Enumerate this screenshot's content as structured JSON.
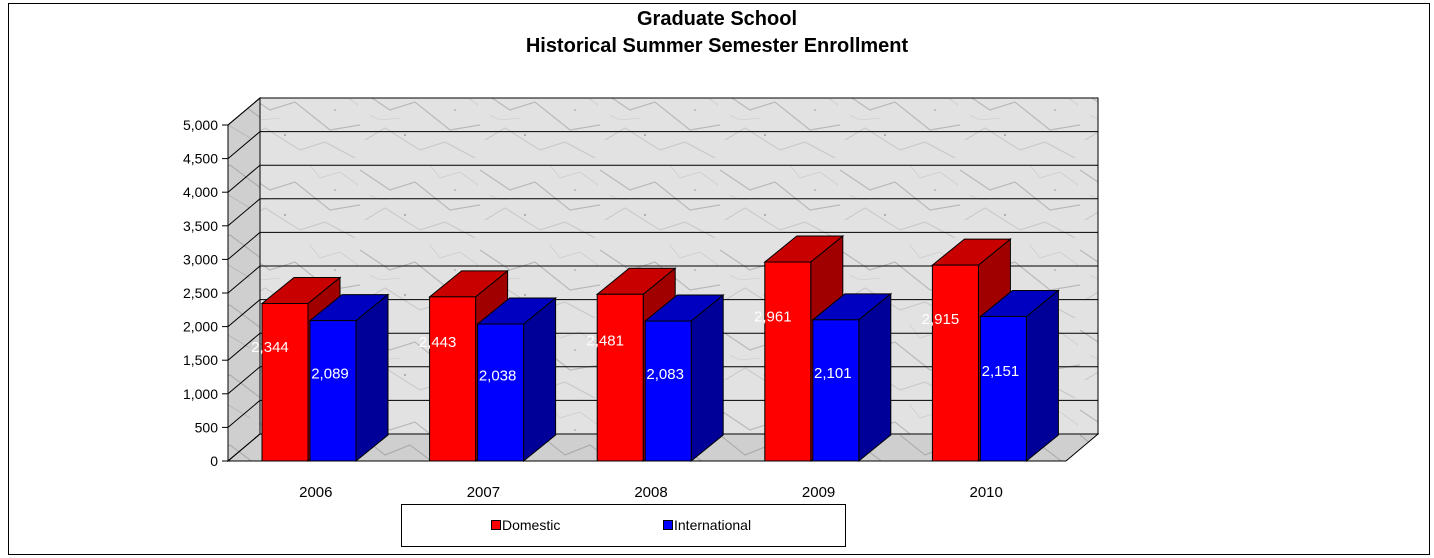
{
  "chart_data": {
    "type": "bar",
    "title": "Graduate School",
    "subtitle": "Historical Summer Semester Enrollment",
    "categories": [
      "2006",
      "2007",
      "2008",
      "2009",
      "2010"
    ],
    "series": [
      {
        "name": "Domestic",
        "values": [
          2344,
          2443,
          2481,
          2961,
          2915
        ],
        "labels": [
          "2,344",
          "2,443",
          "2,481",
          "2,961",
          "2,915"
        ],
        "color": "#FF0000",
        "side_color": "#A00000",
        "top_color": "#C80000"
      },
      {
        "name": "International",
        "values": [
          2089,
          2038,
          2083,
          2101,
          2151
        ],
        "labels": [
          "2,089",
          "2,038",
          "2,083",
          "2,101",
          "2,151"
        ],
        "color": "#0000FF",
        "side_color": "#000099",
        "top_color": "#0000C0"
      }
    ],
    "ylim": [
      0,
      5000
    ],
    "yticks": [
      0,
      500,
      1000,
      1500,
      2000,
      2500,
      3000,
      3500,
      4000,
      4500,
      5000
    ],
    "ytick_labels": [
      "0",
      "500",
      "1,000",
      "1,500",
      "2,000",
      "2,500",
      "3,000",
      "3,500",
      "4,000",
      "4,500",
      "5,000"
    ],
    "grid": true,
    "legend": "bottom",
    "background": "marble"
  }
}
